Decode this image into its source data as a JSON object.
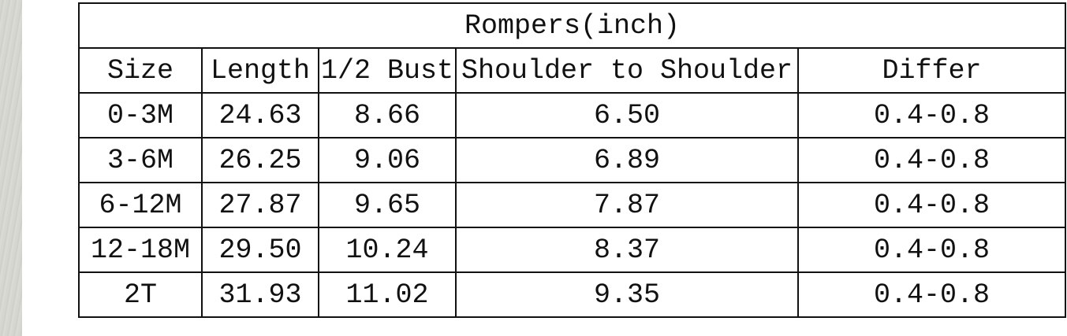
{
  "title": "Rompers(inch)",
  "headers": [
    "Size",
    "Length",
    "1/2 Bust",
    "Shoulder to Shoulder",
    "Differ"
  ],
  "rows": [
    [
      "0-3M",
      "24.63",
      "8.66",
      "6.50",
      "0.4-0.8"
    ],
    [
      "3-6M",
      "26.25",
      "9.06",
      "6.89",
      "0.4-0.8"
    ],
    [
      "6-12M",
      "27.87",
      "9.65",
      "7.87",
      "0.4-0.8"
    ],
    [
      "12-18M",
      "29.50",
      "10.24",
      "8.37",
      "0.4-0.8"
    ],
    [
      "2T",
      "31.93",
      "11.02",
      "9.35",
      "0.4-0.8"
    ]
  ]
}
